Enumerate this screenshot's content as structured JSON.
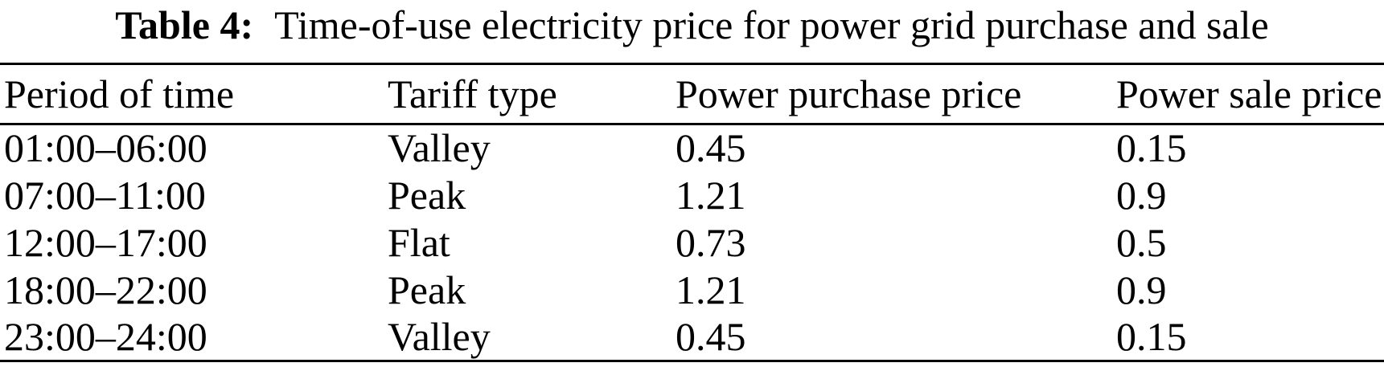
{
  "caption": {
    "label": "Table 4:",
    "text": "Time-of-use electricity price for power grid purchase and sale"
  },
  "table": {
    "headers": [
      "Period of time",
      "Tariff type",
      "Power purchase price",
      "Power sale price"
    ],
    "rows": [
      [
        "01:00–06:00",
        "Valley",
        "0.45",
        "0.15"
      ],
      [
        "07:00–11:00",
        "Peak",
        "1.21",
        "0.9"
      ],
      [
        "12:00–17:00",
        "Flat",
        "0.73",
        "0.5"
      ],
      [
        "18:00–22:00",
        "Peak",
        "1.21",
        "0.9"
      ],
      [
        "23:00–24:00",
        "Valley",
        "0.45",
        "0.15"
      ]
    ]
  },
  "colors": {
    "text": "#000000",
    "background": "#ffffff",
    "rule": "#000000"
  }
}
